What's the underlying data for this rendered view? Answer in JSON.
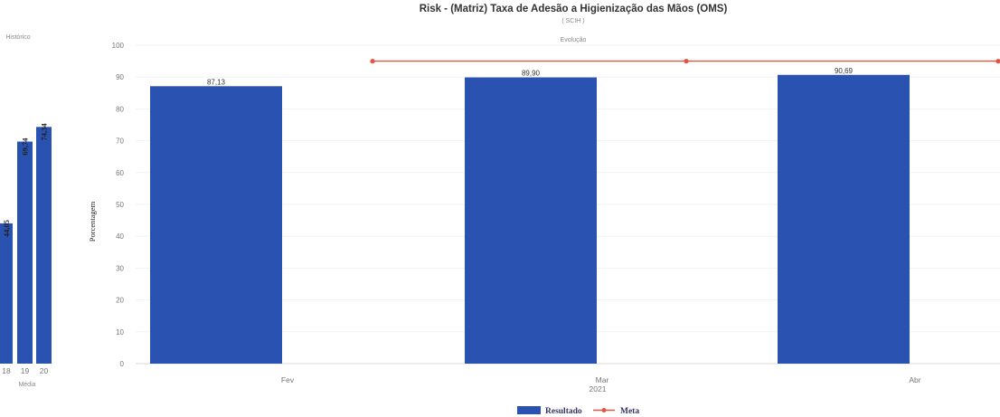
{
  "chart_data": [
    {
      "type": "bar",
      "title": "Histórico",
      "xlabel": "Média",
      "categories": [
        "18",
        "19",
        "20"
      ],
      "values": [
        44.05,
        69.74,
        74.34
      ],
      "value_labels": [
        "44,05",
        "69,74",
        "74,34"
      ],
      "ylim": [
        0,
        100
      ],
      "bar_color": "#2a52b0"
    },
    {
      "type": "bar",
      "title": "Risk - (Matriz) Taxa de Adesão a Higienização das Mãos (OMS)",
      "subtitle": "( SCIH )",
      "section_label": "Evolução",
      "ylabel": "Porcentagem",
      "xlabel": "2021",
      "categories": [
        "Fev",
        "Mar",
        "Abr"
      ],
      "yticks": [
        0,
        10,
        20,
        30,
        40,
        50,
        60,
        70,
        80,
        90,
        100
      ],
      "ylim": [
        0,
        100
      ],
      "grid": true,
      "series": [
        {
          "name": "Resultado",
          "type": "bar",
          "color": "#2a52b0",
          "values": [
            87.13,
            89.9,
            90.69
          ],
          "value_labels": [
            "87,13",
            "89,90",
            "90,69"
          ]
        },
        {
          "name": "Meta",
          "type": "line",
          "color": "#e05545",
          "values": [
            95,
            95,
            95
          ]
        }
      ],
      "legend_position": "bottom"
    }
  ]
}
